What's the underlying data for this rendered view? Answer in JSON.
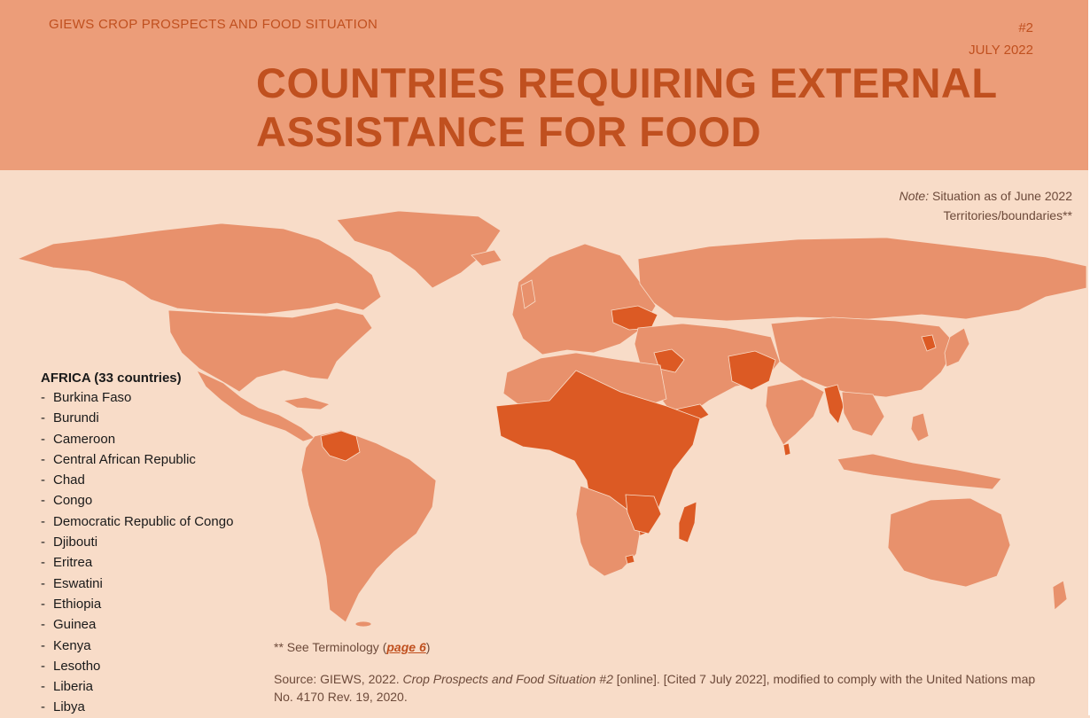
{
  "header": {
    "series": "GIEWS CROP PROSPECTS AND FOOD SITUATION",
    "issue_number": "#2",
    "issue_date": "JULY 2022",
    "title_line1": "COUNTRIES REQUIRING EXTERNAL",
    "title_line2": "ASSISTANCE FOR FOOD"
  },
  "note": {
    "label": "Note:",
    "text": "Situation as of June 2022",
    "line2": "Territories/boundaries**"
  },
  "map": {
    "base_color": "#e8916c",
    "highlight_color": "#dc5a24",
    "background_color": "#f8dcc8"
  },
  "region": {
    "heading": "AFRICA (33 countries)",
    "countries": [
      "Burkina Faso",
      "Burundi",
      "Cameroon",
      "Central African Republic",
      "Chad",
      "Congo",
      "Democratic Republic of Congo",
      "Djibouti",
      "Eritrea",
      "Eswatini",
      "Ethiopia",
      "Guinea",
      "Kenya",
      "Lesotho",
      "Liberia",
      "Libya"
    ]
  },
  "footer": {
    "terminology_prefix": "** See Terminology (",
    "terminology_link": "page 6",
    "terminology_suffix": ")",
    "source_prefix": "Source: GIEWS, 2022. ",
    "source_title": "Crop Prospects and Food Situation #2",
    "source_suffix": " [online]. [Cited 7 July 2022], modified to comply with the United Nations map No. 4170 Rev. 19, 2020."
  }
}
